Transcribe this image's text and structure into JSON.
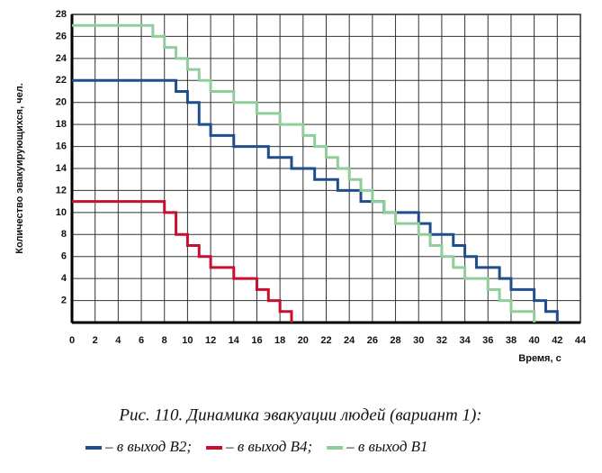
{
  "chart_data": {
    "type": "step",
    "y_label": "Количество эвакуирующихся, чел.",
    "x_label": "Время, с",
    "caption": "Рис. 110. Динамика эвакуации людей (вариант 1):",
    "x": [
      0,
      1,
      2,
      3,
      4,
      5,
      6,
      7,
      8,
      9,
      10,
      11,
      12,
      13,
      14,
      15,
      16,
      17,
      18,
      19,
      20,
      21,
      22,
      23,
      24,
      25,
      26,
      27,
      28,
      29,
      30,
      31,
      32,
      33,
      34,
      35,
      36,
      37,
      38,
      39,
      40,
      41,
      42
    ],
    "series": [
      {
        "name": "– в выход B2;",
        "color": "#1f4e8c",
        "values": [
          22,
          22,
          22,
          22,
          22,
          22,
          22,
          22,
          22,
          21,
          20,
          18,
          17,
          17,
          16,
          16,
          16,
          15,
          15,
          14,
          14,
          13,
          13,
          12,
          12,
          11,
          11,
          10,
          10,
          10,
          9,
          8,
          8,
          7,
          6,
          5,
          5,
          4,
          3,
          3,
          2,
          1,
          0
        ]
      },
      {
        "name": "– в выход B4;",
        "color": "#c8102e",
        "values": [
          11,
          11,
          11,
          11,
          11,
          11,
          11,
          11,
          10,
          8,
          7,
          6,
          5,
          5,
          4,
          4,
          3,
          2,
          1,
          0,
          null,
          null,
          null,
          null,
          null,
          null,
          null,
          null,
          null,
          null,
          null,
          null,
          null,
          null,
          null,
          null,
          null,
          null,
          null,
          null,
          null,
          null,
          null
        ]
      },
      {
        "name": "– в выход B1",
        "color": "#8fce9a",
        "values": [
          27,
          27,
          27,
          27,
          27,
          27,
          27,
          26,
          25,
          24,
          23,
          22,
          21,
          21,
          20,
          20,
          19,
          19,
          18,
          18,
          17,
          16,
          15,
          14,
          13,
          12,
          11,
          10,
          9,
          9,
          8,
          7,
          6,
          5,
          4,
          4,
          3,
          2,
          1,
          1,
          0,
          null,
          null
        ]
      }
    ],
    "xlim": [
      0,
      44
    ],
    "xticks": [
      0,
      2,
      4,
      6,
      8,
      10,
      12,
      14,
      16,
      18,
      20,
      22,
      24,
      26,
      28,
      30,
      32,
      34,
      36,
      38,
      40,
      42,
      44
    ],
    "ylim": [
      0,
      28
    ],
    "yticks": [
      2,
      4,
      6,
      8,
      10,
      12,
      14,
      16,
      18,
      20,
      22,
      24,
      26,
      28
    ],
    "grid": true
  }
}
